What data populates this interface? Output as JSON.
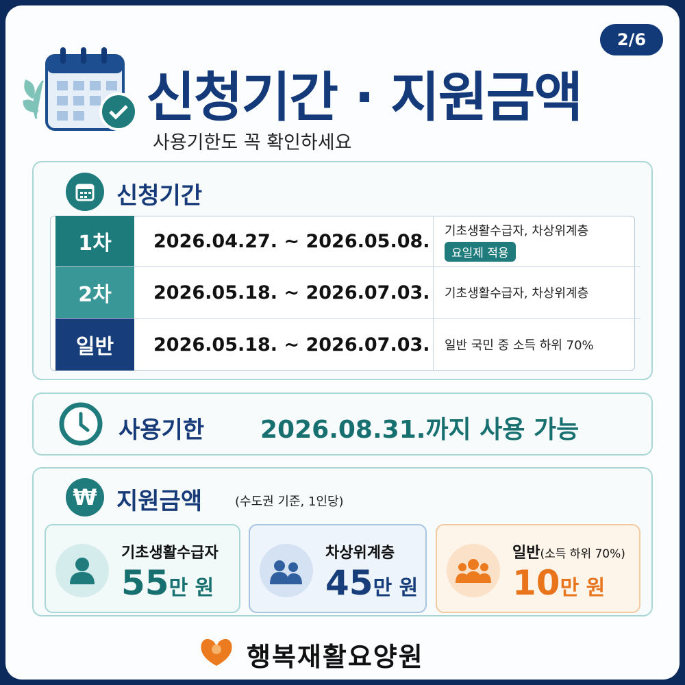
{
  "page_indicator": "2/6",
  "header": {
    "title": "신청기간 · 지원금액",
    "subtitle": "사용기한도 꼭 확인하세요"
  },
  "period": {
    "title": "신청기간",
    "rows": [
      {
        "label": "1차",
        "dates": "2026.04.27. ~ 2026.05.08.",
        "target": "기초생활수급자, 차상위계층",
        "badge": "요일제 적용"
      },
      {
        "label": "2차",
        "dates": "2026.05.18. ~ 2026.07.03.",
        "target": "기초생활수급자, 차상위계층"
      },
      {
        "label": "일반",
        "dates": "2026.05.18. ~ 2026.07.03.",
        "target": "일반 국민 중 소득 하위 70%"
      }
    ]
  },
  "usage": {
    "label": "사용기한",
    "text": "2026.08.31.까지 사용 가능"
  },
  "amount": {
    "title": "지원금액",
    "note": "(수도권 기준, 1인당)",
    "cards": [
      {
        "label": "기초생활수급자",
        "amount": "55",
        "unit": "만 원"
      },
      {
        "label": "차상위계층",
        "amount": "45",
        "unit": "만 원"
      },
      {
        "label": "일반",
        "label_note": "(소득 하위 70%)",
        "amount": "10",
        "unit": "만 원"
      }
    ]
  },
  "footer": {
    "org": "행복재활요양원"
  }
}
